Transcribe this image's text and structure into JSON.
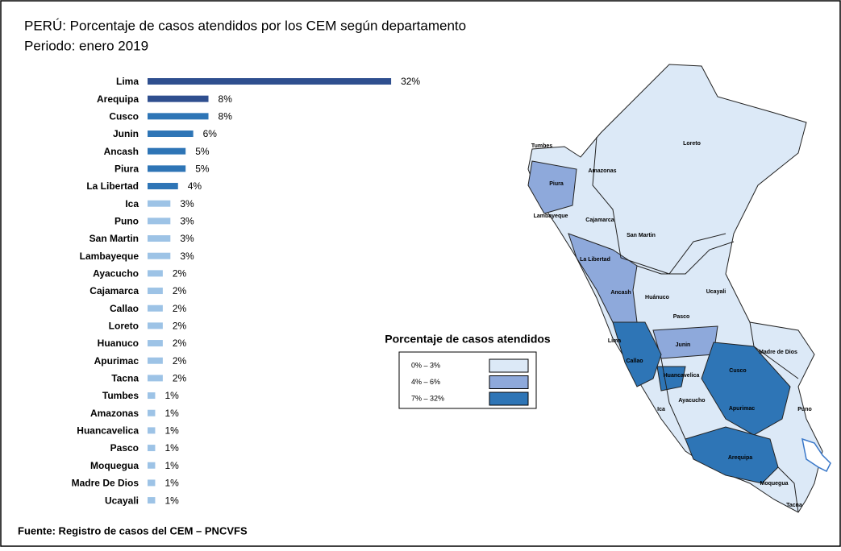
{
  "chart_data": {
    "type": "bar",
    "orientation": "horizontal",
    "title": "PERÚ:  Porcentaje de casos atendidos por los CEM según departamento",
    "subtitle": "Periodo: enero 2019",
    "categories": [
      "Lima",
      "Arequipa",
      "Cusco",
      "Junin",
      "Ancash",
      "Piura",
      "La Libertad",
      "Ica",
      "Puno",
      "San Martin",
      "Lambayeque",
      "Ayacucho",
      "Cajamarca",
      "Callao",
      "Loreto",
      "Huanuco",
      "Apurimac",
      "Tacna",
      "Tumbes",
      "Amazonas",
      "Huancavelica",
      "Pasco",
      "Moquegua",
      "Madre De Dios",
      "Ucayali"
    ],
    "values": [
      32,
      8,
      8,
      6,
      5,
      5,
      4,
      3,
      3,
      3,
      3,
      2,
      2,
      2,
      2,
      2,
      2,
      2,
      1,
      1,
      1,
      1,
      1,
      1,
      1
    ],
    "value_labels": [
      "32%",
      "8%",
      "8%",
      "6%",
      "5%",
      "5%",
      "4%",
      "3%",
      "3%",
      "3%",
      "3%",
      "2%",
      "2%",
      "2%",
      "2%",
      "2%",
      "2%",
      "2%",
      "1%",
      "1%",
      "1%",
      "1%",
      "1%",
      "1%",
      "1%"
    ],
    "colors": [
      "#2f4f8f",
      "#2f4f8f",
      "#2e75b6",
      "#2e75b6",
      "#2e75b6",
      "#2e75b6",
      "#2e75b6",
      "#9dc3e6",
      "#9dc3e6",
      "#9dc3e6",
      "#9dc3e6",
      "#9dc3e6",
      "#9dc3e6",
      "#9dc3e6",
      "#9dc3e6",
      "#9dc3e6",
      "#9dc3e6",
      "#9dc3e6",
      "#9dc3e6",
      "#9dc3e6",
      "#9dc3e6",
      "#9dc3e6",
      "#9dc3e6",
      "#9dc3e6",
      "#9dc3e6"
    ]
  },
  "legend": {
    "title": "Porcentaje de casos atendidos",
    "entries": [
      {
        "label": "0% – 3%",
        "color": "#dce9f7"
      },
      {
        "label": "4% – 6%",
        "color": "#8ea9db"
      },
      {
        "label": "7% – 32%",
        "color": "#2e75b6"
      }
    ]
  },
  "map_labels": [
    "Tumbes",
    "Loreto",
    "Amazonas",
    "Piura",
    "Lambayeque",
    "Cajamarca",
    "San Martin",
    "La Libertad",
    "Ancash",
    "Huánuco",
    "Ucayali",
    "Pasco",
    "Lima",
    "Junin",
    "Callao",
    "Madre de Dios",
    "Huancavelica",
    "Cusco",
    "Ica",
    "Ayacucho",
    "Apurimac",
    "Puno",
    "Arequipa",
    "Moquegua",
    "Tacna"
  ],
  "source": "Fuente: Registro de casos del CEM – PNCVFS"
}
